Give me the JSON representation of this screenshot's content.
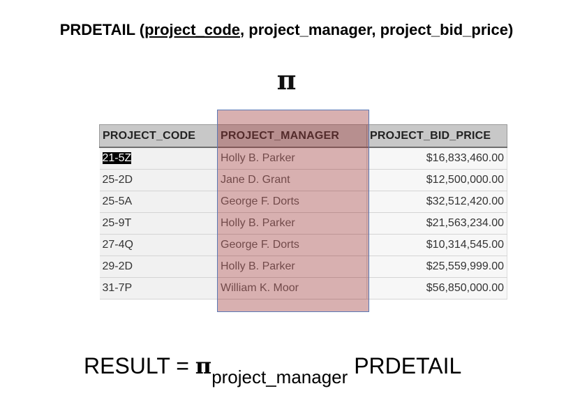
{
  "schema": {
    "relation": "PRDETAIL (",
    "key": "project_code",
    "rest": ", project_manager, project_bid_price)"
  },
  "operator_symbol": "π",
  "table": {
    "headers": [
      "PROJECT_CODE",
      "PROJECT_MANAGER",
      "PROJECT_BID_PRICE"
    ],
    "rows": [
      {
        "code": "21-5Z",
        "manager": "Holly B. Parker",
        "price": "$16,833,460.00"
      },
      {
        "code": "25-2D",
        "manager": "Jane D. Grant",
        "price": "$12,500,000.00"
      },
      {
        "code": "25-5A",
        "manager": "George F. Dorts",
        "price": "$32,512,420.00"
      },
      {
        "code": "25-9T",
        "manager": "Holly B. Parker",
        "price": "$21,563,234.00"
      },
      {
        "code": "27-4Q",
        "manager": "George F. Dorts",
        "price": "$10,314,545.00"
      },
      {
        "code": "29-2D",
        "manager": "Holly B. Parker",
        "price": "$25,559,999.00"
      },
      {
        "code": "31-7P",
        "manager": "William K. Moor",
        "price": "$56,850,000.00"
      }
    ],
    "projected_column": "PROJECT_MANAGER",
    "highlight_color": "#9e3a3a"
  },
  "result": {
    "lhs": "RESULT  = ",
    "pi": "π",
    "subscript": "project_manager",
    "rhs": " PRDETAIL"
  }
}
